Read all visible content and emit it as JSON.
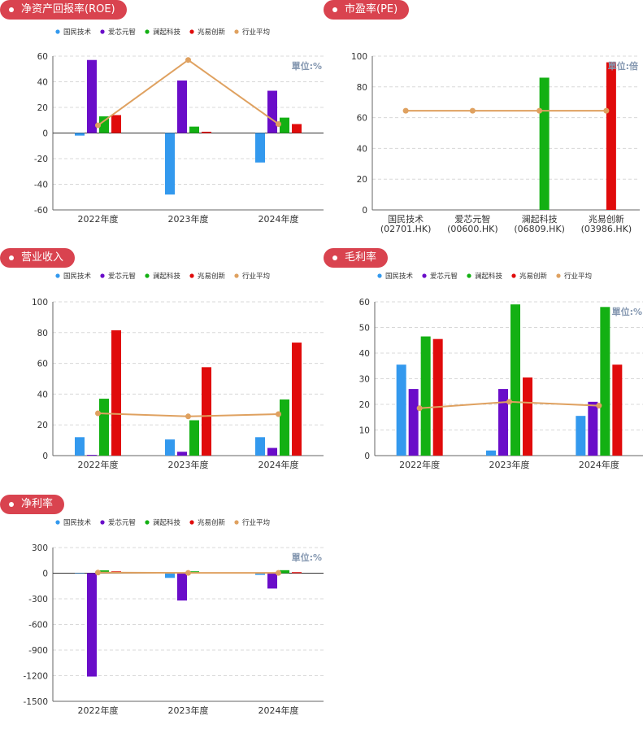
{
  "colors": {
    "badge": "#d9434f",
    "series": [
      "#3399ee",
      "#6a0dc9",
      "#13b013",
      "#e00b0b",
      "#dfa160"
    ],
    "axis": "#333333",
    "grid": "#d8d8d8",
    "unit_text": "#8497b0"
  },
  "legend": [
    "国民技术",
    "爱芯元智",
    "澜起科技",
    "兆易创新",
    "行业平均"
  ],
  "chart_data": [
    {
      "id": "roe",
      "type": "bar",
      "title": "净资产回报率(ROE)",
      "unit": "單位:%",
      "categories": [
        "2022年度",
        "2023年度",
        "2024年度"
      ],
      "ylim": [
        -60,
        60
      ],
      "yticks": [
        60,
        40,
        20,
        0,
        -20,
        -40,
        -60
      ],
      "series": [
        {
          "name": "国民技术",
          "values": [
            -2,
            -48,
            -23
          ]
        },
        {
          "name": "爱芯元智",
          "values": [
            57,
            41,
            33
          ]
        },
        {
          "name": "澜起科技",
          "values": [
            13,
            5,
            12
          ]
        },
        {
          "name": "兆易创新",
          "values": [
            14,
            1,
            7
          ]
        }
      ],
      "line": {
        "name": "行业平均",
        "values": [
          6,
          57,
          7
        ]
      },
      "grid": true,
      "legend_position": "top"
    },
    {
      "id": "pe",
      "type": "bar",
      "title": "市盈率(PE)",
      "unit": "單位:倍",
      "categories": [
        "国民技术\n(02701.HK)",
        "爱芯元智\n(00600.HK)",
        "澜起科技\n(06809.HK)",
        "兆易创新\n(03986.HK)"
      ],
      "ylim": [
        0,
        100
      ],
      "yticks": [
        100,
        80,
        60,
        40,
        20,
        0
      ],
      "values": [
        null,
        null,
        86,
        96
      ],
      "bar_colors": [
        "#3399ee",
        "#6a0dc9",
        "#13b013",
        "#e00b0b"
      ],
      "line": {
        "name": "行业平均",
        "values": [
          64.5,
          64.5,
          64.5,
          64.5
        ]
      },
      "grid": true
    },
    {
      "id": "revenue",
      "type": "bar",
      "title": "营业收入",
      "unit": "",
      "categories": [
        "2022年度",
        "2023年度",
        "2024年度"
      ],
      "ylim": [
        0,
        100
      ],
      "yticks": [
        100,
        80,
        60,
        40,
        20,
        0
      ],
      "series": [
        {
          "name": "国民技术",
          "values": [
            12,
            10.5,
            12
          ]
        },
        {
          "name": "爱芯元智",
          "values": [
            0.5,
            2.5,
            5
          ]
        },
        {
          "name": "澜起科技",
          "values": [
            37,
            23,
            36.5
          ]
        },
        {
          "name": "兆易创新",
          "values": [
            81.5,
            57.5,
            73.5
          ]
        }
      ],
      "line": {
        "name": "行业平均",
        "values": [
          27.5,
          25.5,
          27
        ]
      },
      "grid": true,
      "legend_position": "top"
    },
    {
      "id": "gross",
      "type": "bar",
      "title": "毛利率",
      "unit": "單位:%",
      "categories": [
        "2022年度",
        "2023年度",
        "2024年度"
      ],
      "ylim": [
        0,
        60
      ],
      "yticks": [
        60,
        50,
        40,
        30,
        20,
        10,
        0
      ],
      "series": [
        {
          "name": "国民技术",
          "values": [
            35.5,
            2,
            15.5
          ]
        },
        {
          "name": "爱芯元智",
          "values": [
            26,
            26,
            21
          ]
        },
        {
          "name": "澜起科技",
          "values": [
            46.5,
            59,
            58
          ]
        },
        {
          "name": "兆易创新",
          "values": [
            45.5,
            30.5,
            35.5
          ]
        }
      ],
      "line": {
        "name": "行业平均",
        "values": [
          18.5,
          21,
          19.5
        ]
      },
      "grid": true,
      "legend_position": "top"
    },
    {
      "id": "net",
      "type": "bar",
      "title": "净利率",
      "unit": "單位:%",
      "categories": [
        "2022年度",
        "2023年度",
        "2024年度"
      ],
      "ylim": [
        -1500,
        300
      ],
      "yticks": [
        300,
        0,
        -300,
        -600,
        -900,
        -1200,
        -1500
      ],
      "series": [
        {
          "name": "国民技术",
          "values": [
            -4,
            -55,
            -20
          ]
        },
        {
          "name": "爱芯元智",
          "values": [
            -1210,
            -320,
            -180
          ]
        },
        {
          "name": "澜起科技",
          "values": [
            33,
            22,
            35
          ]
        },
        {
          "name": "兆易创新",
          "values": [
            22,
            2,
            12
          ]
        }
      ],
      "line": {
        "name": "行业平均",
        "values": [
          7,
          3,
          3
        ]
      },
      "grid": true,
      "legend_position": "top"
    }
  ]
}
